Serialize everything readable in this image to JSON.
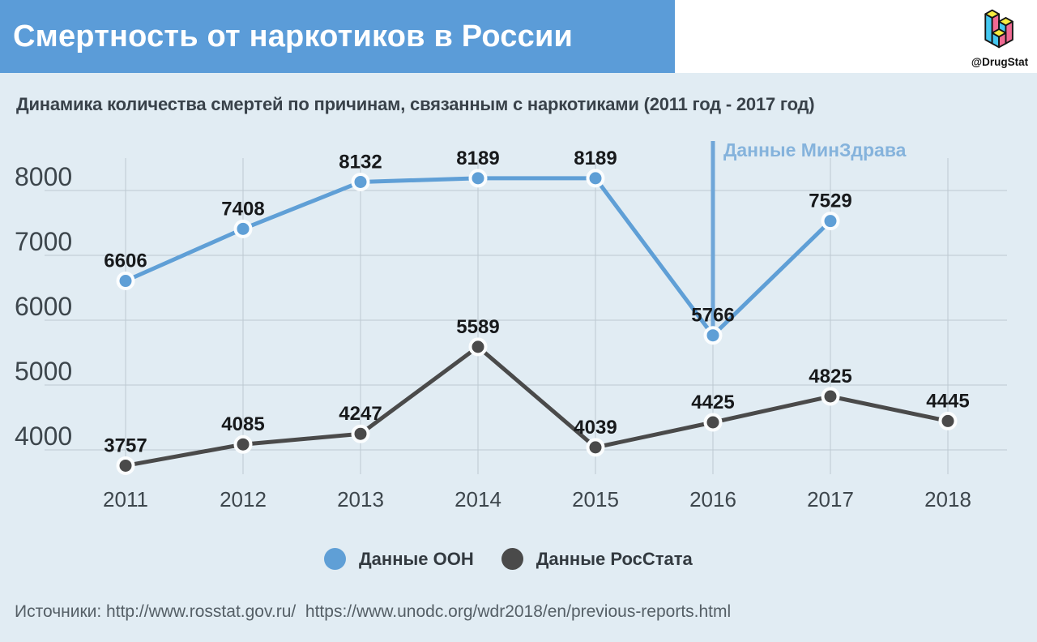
{
  "header": {
    "title": "Смертность от наркотиков в России",
    "brand": "@DrugStat"
  },
  "subtitle": "Динамика количества смертей по причинам, связанным с наркотиками (2011 год - 2017 год)",
  "legend": {
    "items": [
      {
        "label": "Данные ООН",
        "color": "#5f9fd6"
      },
      {
        "label": "Данные РосСтата",
        "color": "#4a4a4a"
      }
    ]
  },
  "footer": {
    "sources": "Источники: http://www.rosstat.gov.ru/  https://www.unodc.org/wdr2018/en/previous-reports.html"
  },
  "colors": {
    "header_bar": "#5b9cd8",
    "background": "#e1ecf3",
    "grid": "#bdc9d1",
    "tick_text": "#3d464c",
    "value_text": "#17191b"
  },
  "chart_data": {
    "type": "line",
    "title": "Динамика количества смертей по причинам, связанным с наркотиками (2011 год - 2017 год)",
    "x": [
      2011,
      2012,
      2013,
      2014,
      2015,
      2016,
      2017,
      2018
    ],
    "series": [
      {
        "name": "Данные ООН",
        "color": "#5f9fd6",
        "x": [
          2011,
          2012,
          2013,
          2014,
          2015,
          2016,
          2017
        ],
        "values": [
          6606,
          7408,
          8132,
          8189,
          8189,
          5766,
          7529
        ]
      },
      {
        "name": "Данные РосСтата",
        "color": "#4a4a4a",
        "x": [
          2011,
          2012,
          2013,
          2014,
          2015,
          2016,
          2017,
          2018
        ],
        "values": [
          3757,
          4085,
          4247,
          5589,
          4039,
          4425,
          4825,
          4445
        ]
      }
    ],
    "yticks": [
      4000,
      5000,
      6000,
      7000,
      8000
    ],
    "ylim": [
      3500,
      8700
    ],
    "xlabel": "",
    "ylabel": "",
    "grid": true,
    "legend_position": "bottom",
    "annotation": {
      "text": "Данные МинЗдрава",
      "x": 2016,
      "y": 5766,
      "color": "#6fa6d8"
    }
  }
}
